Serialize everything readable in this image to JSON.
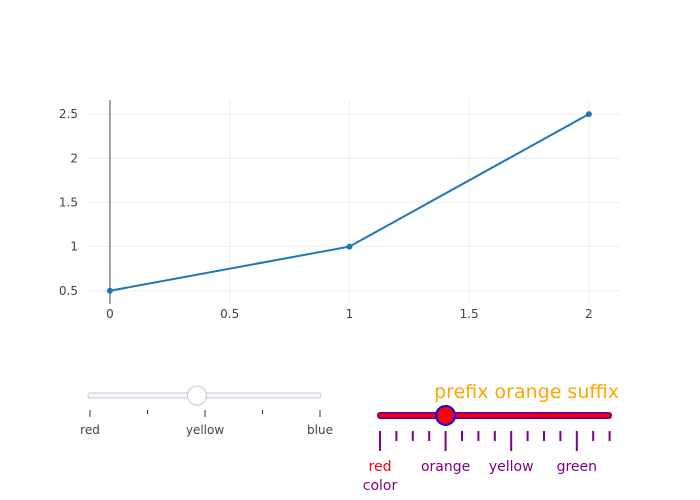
{
  "chart_data": {
    "type": "line",
    "title": "",
    "xlabel": "",
    "ylabel": "",
    "x": [
      0,
      1,
      2
    ],
    "y": [
      0.5,
      1,
      2.5
    ],
    "xlim": [
      -0.1,
      2.13
    ],
    "ylim": [
      0.35,
      2.66
    ],
    "xticks": [
      0,
      0.5,
      1,
      1.5,
      2
    ],
    "xtick_labels": [
      "0",
      "0.5",
      "1",
      "1.5",
      "2"
    ],
    "yticks": [
      0.5,
      1,
      1.5,
      2,
      2.5
    ],
    "ytick_labels": [
      "0.5",
      "1",
      "1.5",
      "2",
      "2.5"
    ],
    "grid": true,
    "line_color": "#1f77b4"
  },
  "slider_left": {
    "steps": [
      "red",
      "yellow",
      "blue"
    ],
    "active_index": 1,
    "rail_color": "#f8fafc",
    "rail_border": "#bec8d9",
    "handle_border": "#bec8d9",
    "tick_color": "#333333"
  },
  "slider_right": {
    "steps": [
      "red",
      "orange",
      "yellow",
      "green"
    ],
    "active_index": 1,
    "currentvalue": {
      "prefix": "prefix ",
      "suffix": " suffix",
      "value": "orange"
    },
    "step_label_color": "#800080",
    "title_color": "#ffa500",
    "axis_label": "color",
    "axis_label_color": "#800080",
    "rail_fill": "#ff0000",
    "rail_border": "#800080",
    "handle_fill": "#ff0000",
    "handle_border": "#0000ff",
    "tick_color": "#800080"
  }
}
